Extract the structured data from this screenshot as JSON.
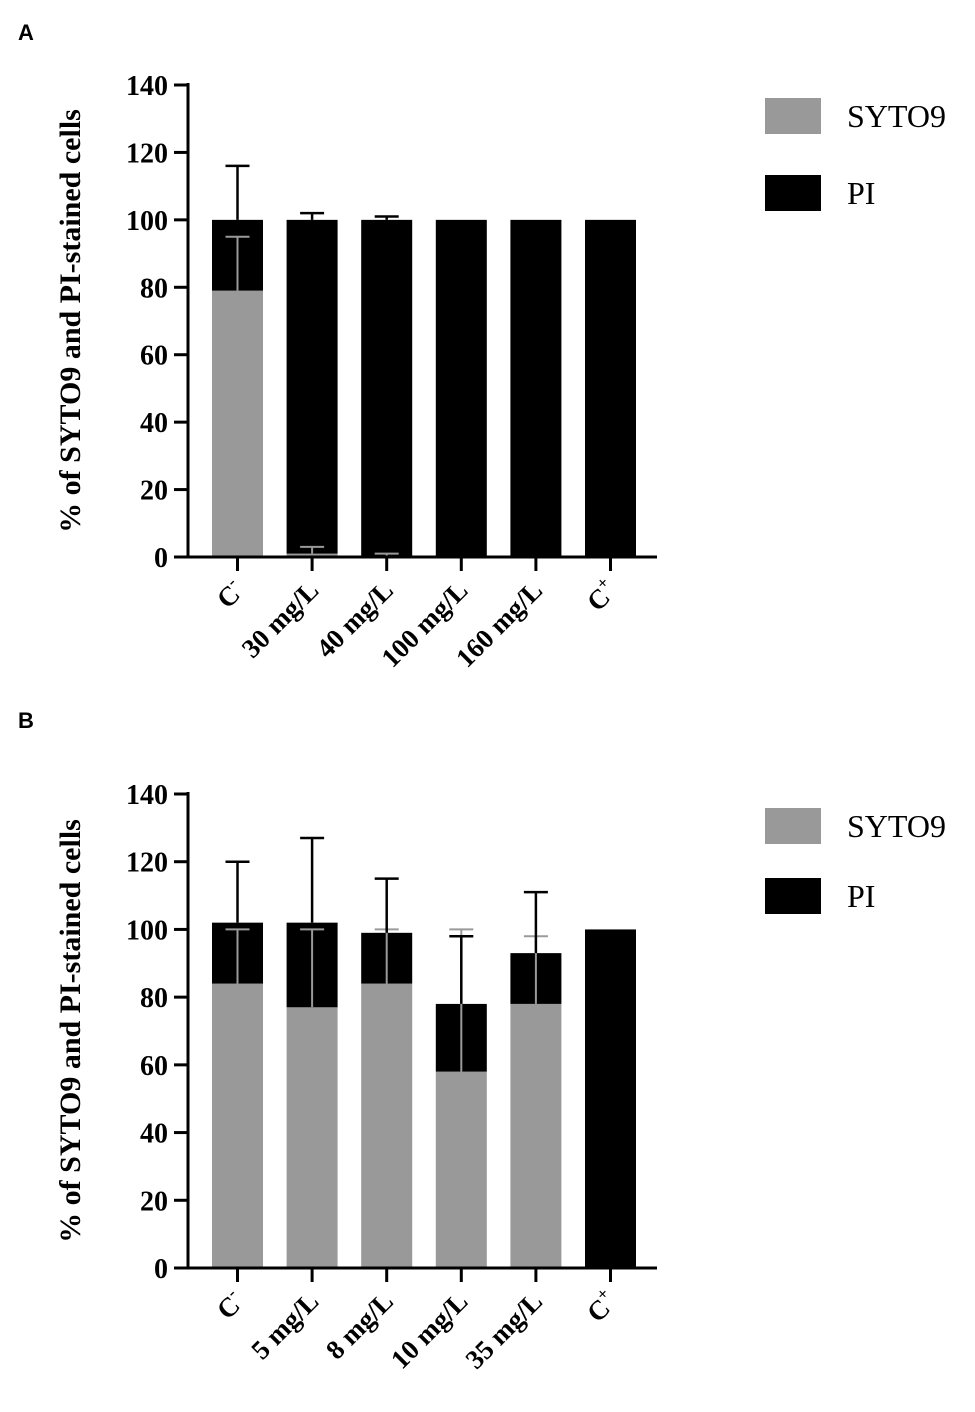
{
  "chart_data": [
    {
      "panel": "A",
      "type": "bar",
      "stacked": true,
      "ylabel": "% of SYTO9 and PI-stained cells",
      "xlabel": "",
      "ylim": [
        0,
        140
      ],
      "yticks": [
        0,
        20,
        40,
        60,
        80,
        100,
        120,
        140
      ],
      "categories": [
        {
          "base": "C",
          "sup": "-"
        },
        {
          "base": "30 mg/L",
          "sup": ""
        },
        {
          "base": "40 mg/L",
          "sup": ""
        },
        {
          "base": "100 mg/L",
          "sup": ""
        },
        {
          "base": "160 mg/L",
          "sup": ""
        },
        {
          "base": "C",
          "sup": "+"
        }
      ],
      "series": [
        {
          "name": "SYTO9",
          "color": "#999999",
          "values": [
            79,
            1,
            0,
            0,
            0,
            0
          ],
          "error_up": [
            95,
            3,
            1,
            null,
            null,
            null
          ]
        },
        {
          "name": "PI",
          "color": "#000000",
          "values": [
            21,
            99,
            100,
            100,
            100,
            100
          ],
          "error_up": [
            116,
            102,
            101,
            null,
            null,
            null
          ]
        }
      ],
      "legend": {
        "position": "right",
        "entries": [
          "SYTO9",
          "PI"
        ]
      }
    },
    {
      "panel": "B",
      "type": "bar",
      "stacked": true,
      "ylabel": "% of SYTO9 and PI-stained cells",
      "xlabel": "",
      "ylim": [
        0,
        140
      ],
      "yticks": [
        0,
        20,
        40,
        60,
        80,
        100,
        120,
        140
      ],
      "categories": [
        {
          "base": "C",
          "sup": "-"
        },
        {
          "base": "5 mg/L",
          "sup": ""
        },
        {
          "base": "8 mg/L",
          "sup": ""
        },
        {
          "base": "10 mg/L",
          "sup": ""
        },
        {
          "base": "35 mg/L",
          "sup": ""
        },
        {
          "base": "C",
          "sup": "+"
        }
      ],
      "series": [
        {
          "name": "SYTO9",
          "color": "#999999",
          "values": [
            84,
            77,
            84,
            58,
            78,
            0
          ],
          "error_up": [
            100,
            100,
            100,
            100,
            98,
            null
          ]
        },
        {
          "name": "PI",
          "color": "#000000",
          "values": [
            18,
            25,
            15,
            20,
            15,
            100
          ],
          "error_up": [
            120,
            127,
            115,
            98,
            111,
            null
          ]
        }
      ],
      "legend": {
        "position": "right",
        "entries": [
          "SYTO9",
          "PI"
        ]
      }
    }
  ]
}
